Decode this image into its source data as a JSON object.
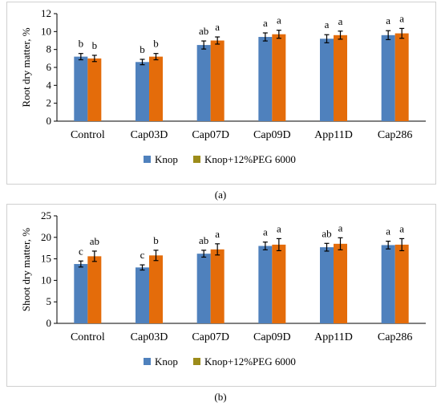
{
  "chart_data": [
    {
      "type": "bar",
      "panel_label": "(a)",
      "ylabel": "Root dry matter, %",
      "ylim": [
        0,
        12
      ],
      "yticks": [
        "0",
        "2",
        "4",
        "6",
        "8",
        "10",
        "12"
      ],
      "categories": [
        "Control",
        "Cap03D",
        "Cap07D",
        "Cap09D",
        "App11D",
        "Cap286"
      ],
      "grid": false,
      "legend_position": "bottom",
      "series": [
        {
          "name": "Knop",
          "color": "#4f81bd",
          "values": [
            7.2,
            6.6,
            8.5,
            9.4,
            9.2,
            9.6
          ],
          "errors": [
            0.35,
            0.3,
            0.45,
            0.45,
            0.45,
            0.5
          ],
          "letters": [
            "b",
            "b",
            "ab",
            "a",
            "a",
            "a"
          ]
        },
        {
          "name": "Knop+12%PEG 6000",
          "color": "#e46c0a",
          "values": [
            7.0,
            7.2,
            9.0,
            9.7,
            9.6,
            9.8
          ],
          "errors": [
            0.35,
            0.35,
            0.4,
            0.45,
            0.45,
            0.55
          ],
          "letters": [
            "b",
            "b",
            "a",
            "a",
            "a",
            "a"
          ]
        }
      ]
    },
    {
      "type": "bar",
      "panel_label": "(b)",
      "ylabel": "Shoot dry matter, %",
      "ylim": [
        0,
        25
      ],
      "yticks": [
        "0",
        "5",
        "10",
        "15",
        "20",
        "25"
      ],
      "categories": [
        "Control",
        "Cap03D",
        "Cap07D",
        "Cap09D",
        "App11D",
        "Cap286"
      ],
      "grid": false,
      "legend_position": "bottom",
      "series": [
        {
          "name": "Knop",
          "color": "#4f81bd",
          "values": [
            13.8,
            13.0,
            16.2,
            18.0,
            17.7,
            18.2
          ],
          "errors": [
            0.7,
            0.6,
            0.8,
            0.9,
            0.9,
            0.9
          ],
          "letters": [
            "c",
            "c",
            "ab",
            "a",
            "ab",
            "a"
          ]
        },
        {
          "name": "Knop+12%PEG 6000",
          "color": "#e46c0a",
          "values": [
            15.6,
            15.8,
            17.2,
            18.3,
            18.5,
            18.3
          ],
          "errors": [
            1.2,
            1.2,
            1.3,
            1.4,
            1.4,
            1.4
          ],
          "letters": [
            "ab",
            "b",
            "a",
            "a",
            "a",
            "a"
          ]
        }
      ]
    }
  ],
  "legend_swatch_colors": [
    "#4f81bd",
    "#9c8c1a"
  ]
}
